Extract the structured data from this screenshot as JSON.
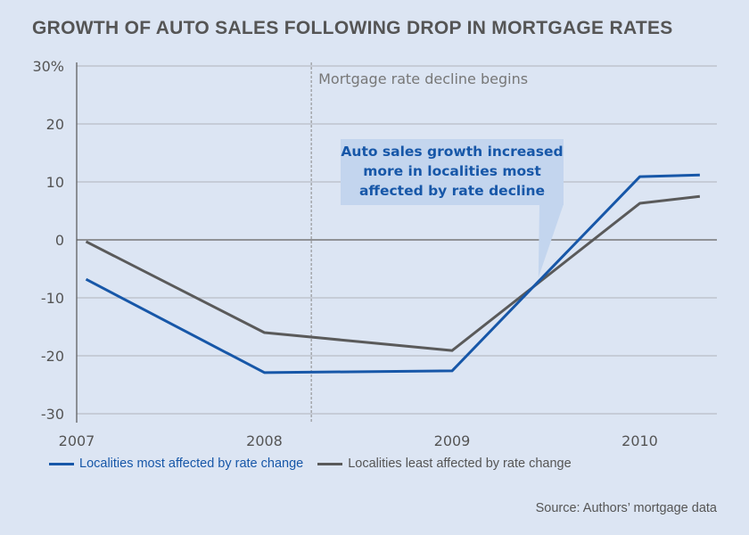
{
  "chart_data": {
    "type": "line",
    "title": "GROWTH OF AUTO SALES FOLLOWING DROP IN MORTGAGE RATES",
    "xlabel": "",
    "ylabel": "",
    "x_ticks": [
      "2007",
      "2008",
      "2009",
      "2010"
    ],
    "y_ticks": [
      "30%",
      "20",
      "10",
      "0",
      "-10",
      "-20",
      "-30"
    ],
    "y_tick_values": [
      30,
      20,
      10,
      0,
      -10,
      -20,
      -30
    ],
    "x_tick_values": [
      2007,
      2008,
      2009,
      2010
    ],
    "xlim": [
      2007,
      2010.42
    ],
    "ylim": [
      -31,
      31
    ],
    "grid": true,
    "series": [
      {
        "name": "Localities most affected by rate change",
        "color": "#1757a8",
        "x": [
          2007.05,
          2008,
          2009,
          2010,
          2010.32
        ],
        "values": [
          -6.8,
          -22.9,
          -22.6,
          10.9,
          11.2
        ]
      },
      {
        "name": "Localities least affected by rate change",
        "color": "#5a5a5a",
        "x": [
          2007.05,
          2008,
          2009,
          2010,
          2010.32
        ],
        "values": [
          -0.3,
          -16.0,
          -19.1,
          6.3,
          7.5
        ]
      }
    ],
    "annotations": {
      "vertical_line": {
        "x": 2008.25,
        "label": "Mortgage rate decline begins"
      },
      "callout": {
        "text": "Auto sales growth increased more in localities most affected by rate decline",
        "point_x": 2009.46,
        "point_y": -6.5
      }
    },
    "legend_position": "bottom",
    "source": "Source: Authors’ mortgage data"
  },
  "callout_lines": [
    "Auto sales growth increased",
    "more in localities most",
    "affected by rate decline"
  ],
  "colors": {
    "background": "#dce5f3",
    "callout_bg": "#c3d5ee",
    "grid": "#b9bec6",
    "axis": "#666666"
  }
}
